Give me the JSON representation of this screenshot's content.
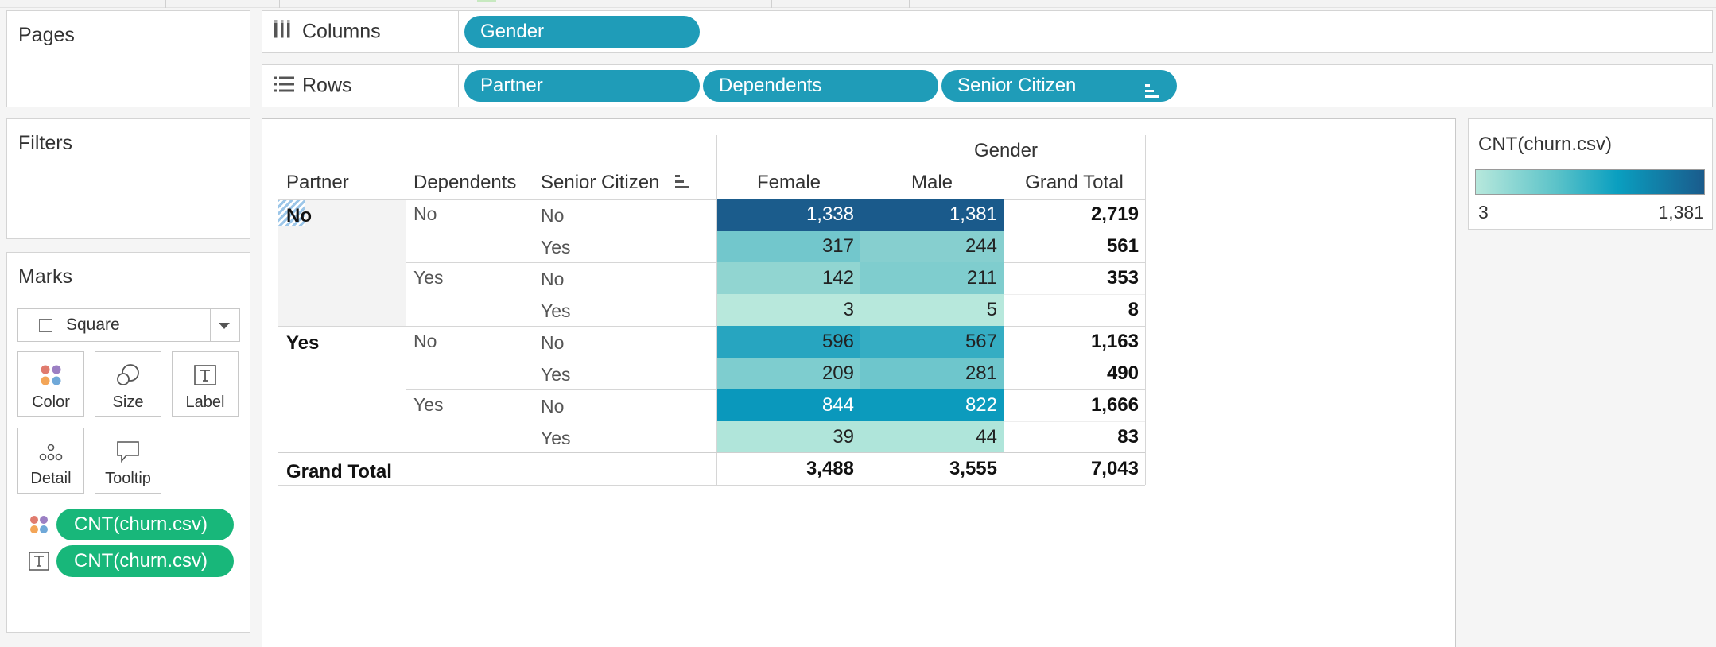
{
  "shelves": {
    "columns": {
      "label": "Columns",
      "pills": [
        "Gender"
      ]
    },
    "rows": {
      "label": "Rows",
      "pills": [
        "Partner",
        "Dependents",
        "Senior Citizen"
      ]
    }
  },
  "cards": {
    "pages": "Pages",
    "filters": "Filters",
    "marks": "Marks"
  },
  "marks": {
    "type": "Square",
    "buttons": {
      "color": "Color",
      "size": "Size",
      "label": "Label",
      "detail": "Detail",
      "tooltip": "Tooltip"
    },
    "fields": [
      "CNT(churn.csv)",
      "CNT(churn.csv)"
    ]
  },
  "table": {
    "headers": {
      "partner": "Partner",
      "dependents": "Dependents",
      "senior": "Senior Citizen",
      "gender": "Gender",
      "female": "Female",
      "male": "Male",
      "grand_total": "Grand Total"
    },
    "rows": [
      {
        "partner": "No",
        "dependents": "No",
        "senior": "No",
        "female": "1,338",
        "male": "1,381",
        "total": "2,719"
      },
      {
        "partner": "",
        "dependents": "",
        "senior": "Yes",
        "female": "317",
        "male": "244",
        "total": "561"
      },
      {
        "partner": "",
        "dependents": "Yes",
        "senior": "No",
        "female": "142",
        "male": "211",
        "total": "353"
      },
      {
        "partner": "",
        "dependents": "",
        "senior": "Yes",
        "female": "3",
        "male": "5",
        "total": "8"
      },
      {
        "partner": "Yes",
        "dependents": "No",
        "senior": "No",
        "female": "596",
        "male": "567",
        "total": "1,163"
      },
      {
        "partner": "",
        "dependents": "",
        "senior": "Yes",
        "female": "209",
        "male": "281",
        "total": "490"
      },
      {
        "partner": "",
        "dependents": "Yes",
        "senior": "No",
        "female": "844",
        "male": "822",
        "total": "1,666"
      },
      {
        "partner": "",
        "dependents": "",
        "senior": "Yes",
        "female": "39",
        "male": "44",
        "total": "83"
      }
    ],
    "grand_total": {
      "label": "Grand Total",
      "female": "3,488",
      "male": "3,555",
      "total": "7,043"
    }
  },
  "legend": {
    "title": "CNT(churn.csv)",
    "min": "3",
    "max": "1,381"
  },
  "colors": {
    "pill_blue": "#1f9cb8",
    "pill_green": "#18b77a",
    "heat_scale": [
      "#b7e8dc",
      "#5cc3c9",
      "#0a9fc0",
      "#1a5b8c"
    ],
    "cells": [
      [
        "#1b5c8c",
        "#1a5a8b"
      ],
      [
        "#72c7cc",
        "#86cfcf"
      ],
      [
        "#91d5d1",
        "#7fcdce"
      ],
      [
        "#b8e8dc",
        "#b7e8dc"
      ],
      [
        "#27a5c0",
        "#35adc3"
      ],
      [
        "#7ecdcf",
        "#6ec6cc"
      ],
      [
        "#0a98bc",
        "#0c9bbd"
      ],
      [
        "#b0e5da",
        "#afe5da"
      ]
    ]
  }
}
